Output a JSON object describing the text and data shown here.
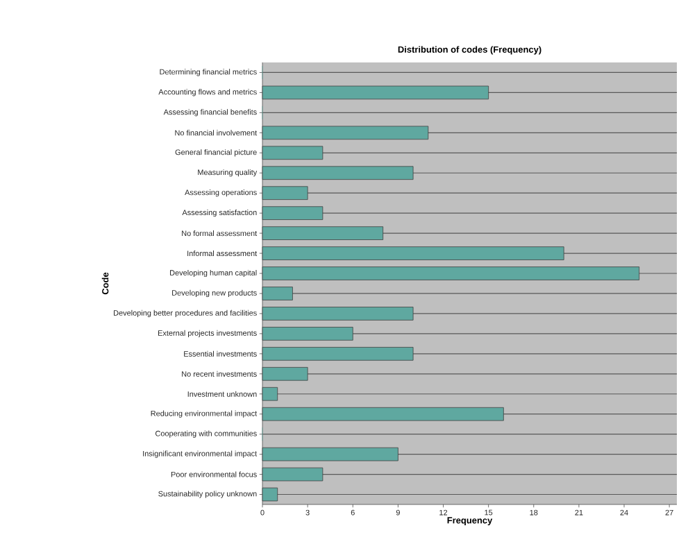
{
  "chart_data": {
    "type": "bar",
    "orientation": "horizontal",
    "title": "Distribution of codes (Frequency)",
    "xlabel": "Frequency",
    "ylabel": "Code",
    "categories": [
      "Determining financial metrics",
      "Accounting flows and metrics",
      "Assessing financial benefits",
      "No financial involvement",
      "General financial picture",
      "Measuring quality",
      "Assessing operations",
      "Assessing satisfaction",
      "No formal assessment",
      "Informal assessment",
      "Developing human capital",
      "Developing new products",
      "Developing better procedures and facilities",
      "External projects investments",
      "Essential investments",
      "No recent investments",
      "Investment unknown",
      "Reducing environmental impact",
      "Cooperating with communities",
      "Insignificant environmental impact",
      "Poor environmental focus",
      "Sustainability policy unknown"
    ],
    "values": [
      0,
      15,
      0,
      11,
      4,
      10,
      3,
      4,
      8,
      20,
      25,
      2,
      10,
      6,
      10,
      3,
      1,
      16,
      0,
      9,
      4,
      1
    ],
    "color": "#5fa8a0",
    "xlim": [
      0,
      27.5
    ],
    "xticks": [
      0,
      3,
      6,
      9,
      12,
      15,
      18,
      21,
      24,
      27
    ],
    "grid": "y"
  }
}
